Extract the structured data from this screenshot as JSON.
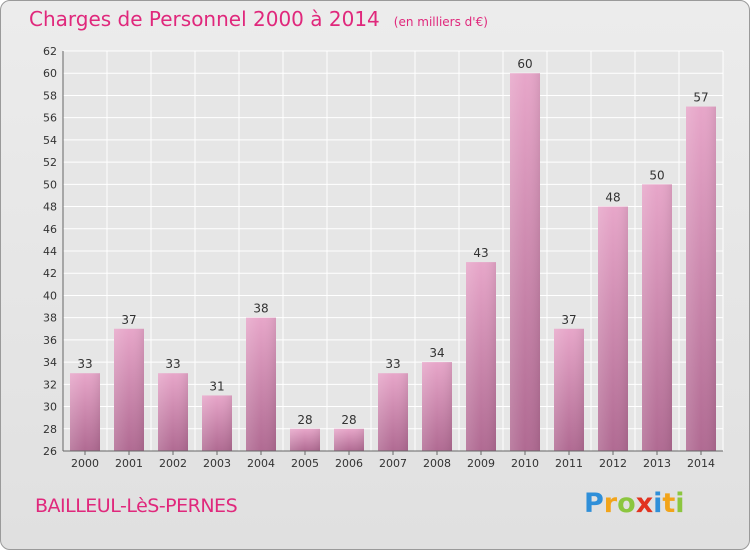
{
  "header": {
    "title": "Charges de Personnel 2000 à 2014",
    "subtitle": "(en milliers d'€)"
  },
  "footer": {
    "commune": "BAILLEUL-LèS-PERNES",
    "logo_letters": [
      {
        "char": "P",
        "color": "#2f8fd9"
      },
      {
        "char": "r",
        "color": "#f2a41a"
      },
      {
        "char": "o",
        "color": "#8cc63f"
      },
      {
        "char": "x",
        "color": "#e2321f"
      },
      {
        "char": "i",
        "color": "#2f8fd9"
      },
      {
        "char": "t",
        "color": "#f2a41a"
      },
      {
        "char": "i",
        "color": "#8cc63f"
      }
    ]
  },
  "chart_data": {
    "type": "bar",
    "categories": [
      "2000",
      "2001",
      "2002",
      "2003",
      "2004",
      "2005",
      "2006",
      "2007",
      "2008",
      "2009",
      "2010",
      "2011",
      "2012",
      "2013",
      "2014"
    ],
    "values": [
      33,
      37,
      33,
      31,
      38,
      28,
      28,
      33,
      34,
      43,
      60,
      37,
      48,
      50,
      57
    ],
    "ylim": [
      26,
      62
    ],
    "yticks": [
      26,
      28,
      30,
      32,
      34,
      36,
      38,
      40,
      42,
      44,
      46,
      48,
      50,
      52,
      54,
      56,
      58,
      60,
      62
    ],
    "grid": true,
    "bar_color": "#d889b3",
    "data_labels": true
  }
}
